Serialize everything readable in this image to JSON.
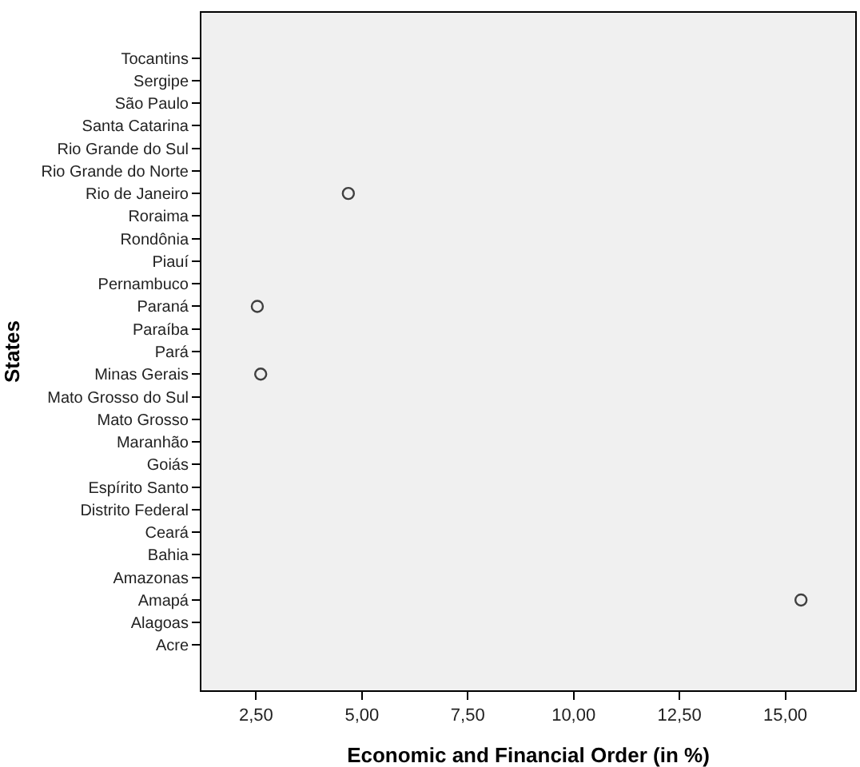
{
  "chart_data": {
    "type": "scatter",
    "categories": [
      "Tocantins",
      "Sergipe",
      "São Paulo",
      "Santa Catarina",
      "Rio Grande do Sul",
      "Rio Grande do Norte",
      "Rio de Janeiro",
      "Roraima",
      "Rondônia",
      "Piauí",
      "Pernambuco",
      "Paraná",
      "Paraíba",
      "Pará",
      "Minas Gerais",
      "Mato Grosso do Sul",
      "Mato Grosso",
      "Maranhão",
      "Goiás",
      "Espírito Santo",
      "Distrito Federal",
      "Ceará",
      "Bahia",
      "Amazonas",
      "Amapá",
      "Alagoas",
      "Acre"
    ],
    "values": [
      null,
      null,
      null,
      null,
      null,
      null,
      4.68,
      null,
      null,
      null,
      null,
      2.53,
      null,
      null,
      2.61,
      null,
      null,
      null,
      null,
      null,
      null,
      null,
      null,
      null,
      15.37,
      null,
      null
    ],
    "orientation": "horizontal",
    "color": "#404040",
    "marker": "circle",
    "xlabel": "Economic and Financial Order (in %)",
    "ylabel": "States",
    "xlim": [
      1.21,
      16.65
    ],
    "xticks": [
      {
        "value": 2.5,
        "label": "2,50"
      },
      {
        "value": 5,
        "label": "5,00"
      },
      {
        "value": 7.5,
        "label": "7,50"
      },
      {
        "value": 10,
        "label": "10,00"
      },
      {
        "value": 12.5,
        "label": "12,50"
      },
      {
        "value": 15,
        "label": "15,00"
      }
    ],
    "grid": false,
    "legend": false
  }
}
